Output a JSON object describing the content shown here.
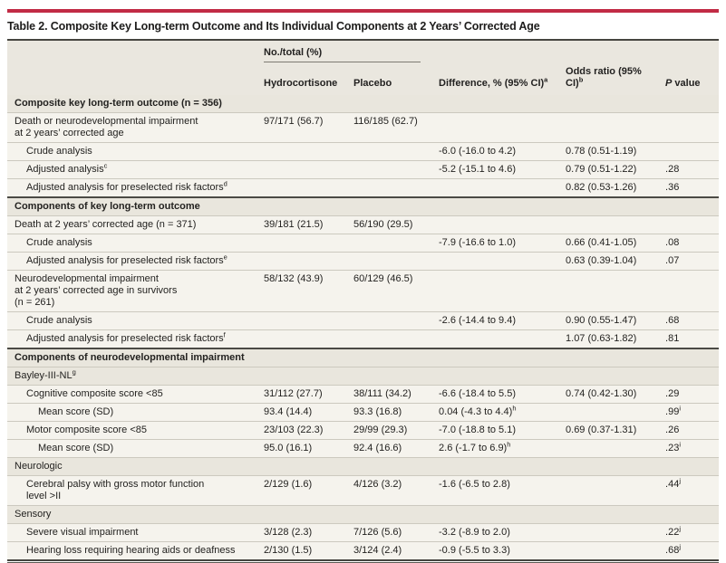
{
  "table": {
    "title": "Table 2. Composite Key Long-term Outcome and Its Individual Components at 2 Years’ Corrected Age",
    "accent_color": "#c12b45",
    "header": {
      "group_label": "No./total (%)",
      "columns": {
        "hydrocortisone": "Hydrocortisone",
        "placebo": "Placebo",
        "difference": "Difference, % (95% CI)",
        "difference_sup": "a",
        "odds_ratio": "Odds ratio (95% CI)",
        "odds_ratio_sup": "b",
        "p_italic": "P",
        "p_rest": " value"
      }
    },
    "rows": [
      {
        "type": "section",
        "indent": 0,
        "label": "Composite key long-term outcome (n = 356)"
      },
      {
        "type": "data",
        "indent": 0,
        "label": "Death or neurodevelopmental impairment\nat 2 years’ corrected age",
        "hydro": "97/171 (56.7)",
        "placebo": "116/185 (62.7)"
      },
      {
        "type": "data",
        "indent": 1,
        "label": "Crude analysis",
        "diff": "-6.0 (-16.0 to 4.2)",
        "odds_ratio": "0.78 (0.51-1.19)"
      },
      {
        "type": "data",
        "indent": 1,
        "label": "Adjusted analysis",
        "label_sup": "c",
        "diff": "-5.2 (-15.1 to 4.6)",
        "odds_ratio": "0.79 (0.51-1.22)",
        "p": ".28"
      },
      {
        "type": "data",
        "indent": 1,
        "label": "Adjusted analysis for preselected risk factors",
        "label_sup": "d",
        "odds_ratio": "0.82 (0.53-1.26)",
        "p": ".36"
      },
      {
        "type": "section",
        "indent": 0,
        "label": "Components of key long-term outcome"
      },
      {
        "type": "data",
        "indent": 0,
        "label": "Death at 2 years’ corrected age (n = 371)",
        "hydro": "39/181 (21.5)",
        "placebo": "56/190 (29.5)"
      },
      {
        "type": "data",
        "indent": 1,
        "label": "Crude analysis",
        "diff": "-7.9 (-16.6 to 1.0)",
        "odds_ratio": "0.66 (0.41-1.05)",
        "p": ".08"
      },
      {
        "type": "data",
        "indent": 1,
        "label": "Adjusted analysis for preselected risk factors",
        "label_sup": "e",
        "odds_ratio": "0.63 (0.39-1.04)",
        "p": ".07"
      },
      {
        "type": "data",
        "indent": 0,
        "label": "Neurodevelopmental impairment\nat 2 years’ corrected age in survivors\n(n = 261)",
        "hydro": "58/132 (43.9)",
        "placebo": "60/129 (46.5)"
      },
      {
        "type": "data",
        "indent": 1,
        "label": "Crude analysis",
        "diff": "-2.6 (-14.4 to 9.4)",
        "odds_ratio": "0.90 (0.55-1.47)",
        "p": ".68"
      },
      {
        "type": "data",
        "indent": 1,
        "label": "Adjusted analysis for preselected risk factors",
        "label_sup": "f",
        "odds_ratio": "1.07 (0.63-1.82)",
        "p": ".81"
      },
      {
        "type": "section",
        "indent": 0,
        "label": "Components of neurodevelopmental impairment"
      },
      {
        "type": "subhead",
        "indent": 0,
        "label": "Bayley-III-NL",
        "label_sup": "g"
      },
      {
        "type": "data",
        "indent": 1,
        "label": "Cognitive composite score <85",
        "hydro": "31/112 (27.7)",
        "placebo": "38/111 (34.2)",
        "diff": "-6.6 (-18.4 to 5.5)",
        "odds_ratio": "0.74 (0.42-1.30)",
        "p": ".29"
      },
      {
        "type": "data",
        "indent": 2,
        "label": "Mean score (SD)",
        "hydro": "93.4 (14.4)",
        "placebo": "93.3 (16.8)",
        "diff": "0.04 (-4.3 to 4.4)",
        "diff_sup": "h",
        "p": ".99",
        "p_sup": "i"
      },
      {
        "type": "data",
        "indent": 1,
        "label": "Motor composite score <85",
        "hydro": "23/103 (22.3)",
        "placebo": "29/99 (29.3)",
        "diff": "-7.0 (-18.8 to 5.1)",
        "odds_ratio": "0.69 (0.37-1.31)",
        "p": ".26"
      },
      {
        "type": "data",
        "indent": 2,
        "label": "Mean score (SD)",
        "hydro": "95.0 (16.1)",
        "placebo": "92.4 (16.6)",
        "diff": "2.6 (-1.7 to 6.9)",
        "diff_sup": "h",
        "p": ".23",
        "p_sup": "i"
      },
      {
        "type": "subhead",
        "indent": 0,
        "label": "Neurologic"
      },
      {
        "type": "data",
        "indent": 1,
        "label": "Cerebral palsy with gross motor function\nlevel >II",
        "hydro": "2/129 (1.6)",
        "placebo": "4/126 (3.2)",
        "diff": "-1.6 (-6.5 to 2.8)",
        "p": ".44",
        "p_sup": "j"
      },
      {
        "type": "subhead",
        "indent": 0,
        "label": "Sensory"
      },
      {
        "type": "data",
        "indent": 1,
        "label": "Severe visual impairment",
        "hydro": "3/128 (2.3)",
        "placebo": "7/126 (5.6)",
        "diff": "-3.2 (-8.9 to 2.0)",
        "p": ".22",
        "p_sup": "j"
      },
      {
        "type": "data",
        "indent": 1,
        "label": "Hearing loss requiring hearing aids or deafness",
        "hydro": "2/130 (1.5)",
        "placebo": "3/124 (2.4)",
        "diff": "-0.9 (-5.5 to 3.3)",
        "p": ".68",
        "p_sup": "j"
      }
    ]
  }
}
